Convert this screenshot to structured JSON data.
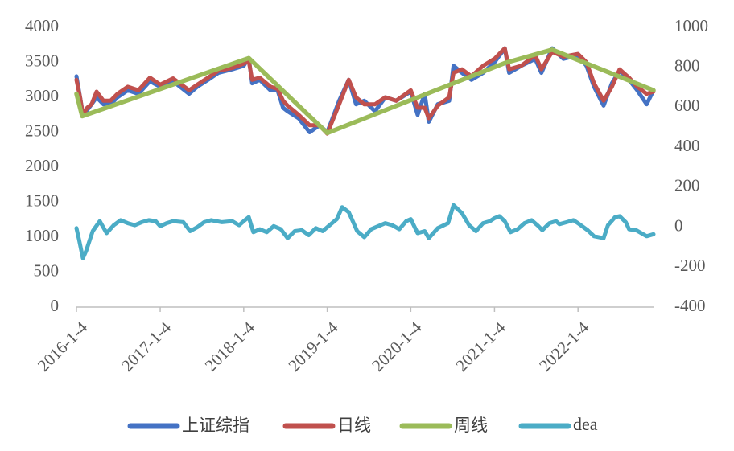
{
  "chart_data": {
    "type": "line",
    "x_ticks": [
      "2016-1-4",
      "2017-1-4",
      "2018-1-4",
      "2019-1-4",
      "2020-1-4",
      "2021-1-4",
      "2022-1-4"
    ],
    "x_range": [
      "2016-1-4",
      "2022-11-30"
    ],
    "y_left": {
      "ticks": [
        0,
        500,
        1000,
        1500,
        2000,
        2500,
        3000,
        3500,
        4000
      ],
      "range": [
        0,
        4000
      ]
    },
    "y_right": {
      "ticks": [
        -400,
        -200,
        0,
        200,
        400,
        600,
        800,
        1000
      ],
      "range": [
        -400,
        1000
      ]
    },
    "grid": false,
    "legend_position": "bottom",
    "series": [
      {
        "name": "上证综指",
        "axis": "left",
        "color": "#4472C4",
        "points": [
          [
            "2016-01-04",
            3300
          ],
          [
            "2016-01-20",
            3000
          ],
          [
            "2016-02-01",
            2750
          ],
          [
            "2016-02-20",
            2820
          ],
          [
            "2016-03-10",
            2900
          ],
          [
            "2016-04-01",
            3000
          ],
          [
            "2016-05-01",
            2900
          ],
          [
            "2016-06-01",
            2900
          ],
          [
            "2016-07-01",
            3000
          ],
          [
            "2016-08-15",
            3100
          ],
          [
            "2016-10-01",
            3050
          ],
          [
            "2016-11-20",
            3230
          ],
          [
            "2017-01-04",
            3150
          ],
          [
            "2017-03-01",
            3230
          ],
          [
            "2017-05-10",
            3050
          ],
          [
            "2017-06-15",
            3150
          ],
          [
            "2017-08-01",
            3250
          ],
          [
            "2017-09-15",
            3350
          ],
          [
            "2017-11-15",
            3400
          ],
          [
            "2018-01-04",
            3450
          ],
          [
            "2018-01-26",
            3560
          ],
          [
            "2018-02-10",
            3200
          ],
          [
            "2018-03-15",
            3250
          ],
          [
            "2018-05-01",
            3100
          ],
          [
            "2018-06-01",
            3100
          ],
          [
            "2018-06-25",
            2850
          ],
          [
            "2018-07-15",
            2800
          ],
          [
            "2018-09-01",
            2700
          ],
          [
            "2018-10-19",
            2500
          ],
          [
            "2018-12-01",
            2600
          ],
          [
            "2019-01-04",
            2500
          ],
          [
            "2019-02-25",
            2950
          ],
          [
            "2019-04-08",
            3250
          ],
          [
            "2019-05-10",
            2900
          ],
          [
            "2019-06-15",
            2950
          ],
          [
            "2019-08-01",
            2800
          ],
          [
            "2019-09-15",
            3000
          ],
          [
            "2019-11-01",
            2950
          ],
          [
            "2020-01-04",
            3080
          ],
          [
            "2020-02-03",
            2750
          ],
          [
            "2020-03-05",
            3050
          ],
          [
            "2020-03-23",
            2650
          ],
          [
            "2020-05-01",
            2900
          ],
          [
            "2020-06-20",
            2950
          ],
          [
            "2020-07-09",
            3450
          ],
          [
            "2020-08-15",
            3350
          ],
          [
            "2020-09-25",
            3250
          ],
          [
            "2020-11-15",
            3350
          ],
          [
            "2021-01-04",
            3500
          ],
          [
            "2021-02-18",
            3700
          ],
          [
            "2021-03-09",
            3350
          ],
          [
            "2021-05-01",
            3450
          ],
          [
            "2021-07-01",
            3550
          ],
          [
            "2021-07-28",
            3350
          ],
          [
            "2021-09-13",
            3700
          ],
          [
            "2021-11-01",
            3550
          ],
          [
            "2022-01-04",
            3600
          ],
          [
            "2022-02-10",
            3450
          ],
          [
            "2022-03-15",
            3150
          ],
          [
            "2022-04-26",
            2880
          ],
          [
            "2022-06-01",
            3200
          ],
          [
            "2022-07-05",
            3380
          ],
          [
            "2022-08-15",
            3250
          ],
          [
            "2022-09-20",
            3100
          ],
          [
            "2022-10-31",
            2900
          ],
          [
            "2022-11-30",
            3100
          ]
        ]
      },
      {
        "name": "日线",
        "axis": "left",
        "color": "#C0504D",
        "points": [
          [
            "2016-01-04",
            3250
          ],
          [
            "2016-01-20",
            3000
          ],
          [
            "2016-02-01",
            2750
          ],
          [
            "2016-02-20",
            2850
          ],
          [
            "2016-03-10",
            2900
          ],
          [
            "2016-04-01",
            3080
          ],
          [
            "2016-05-01",
            2950
          ],
          [
            "2016-06-01",
            2950
          ],
          [
            "2016-07-01",
            3050
          ],
          [
            "2016-08-15",
            3150
          ],
          [
            "2016-10-01",
            3100
          ],
          [
            "2016-11-20",
            3280
          ],
          [
            "2017-01-04",
            3180
          ],
          [
            "2017-03-01",
            3270
          ],
          [
            "2017-05-10",
            3100
          ],
          [
            "2017-06-15",
            3180
          ],
          [
            "2017-08-01",
            3280
          ],
          [
            "2017-09-15",
            3380
          ],
          [
            "2017-11-15",
            3420
          ],
          [
            "2018-01-04",
            3480
          ],
          [
            "2018-01-26",
            3520
          ],
          [
            "2018-02-10",
            3250
          ],
          [
            "2018-03-15",
            3280
          ],
          [
            "2018-05-01",
            3150
          ],
          [
            "2018-06-01",
            3120
          ],
          [
            "2018-06-25",
            2950
          ],
          [
            "2018-07-15",
            2880
          ],
          [
            "2018-09-01",
            2750
          ],
          [
            "2018-10-19",
            2600
          ],
          [
            "2018-12-01",
            2600
          ],
          [
            "2019-01-04",
            2480
          ],
          [
            "2019-02-25",
            2900
          ],
          [
            "2019-04-08",
            3250
          ],
          [
            "2019-05-10",
            3000
          ],
          [
            "2019-06-15",
            2900
          ],
          [
            "2019-08-01",
            2900
          ],
          [
            "2019-09-15",
            3000
          ],
          [
            "2019-11-01",
            2950
          ],
          [
            "2020-01-04",
            3100
          ],
          [
            "2020-02-03",
            2850
          ],
          [
            "2020-03-05",
            2850
          ],
          [
            "2020-03-23",
            2700
          ],
          [
            "2020-05-01",
            2880
          ],
          [
            "2020-06-20",
            3000
          ],
          [
            "2020-07-09",
            3350
          ],
          [
            "2020-08-15",
            3400
          ],
          [
            "2020-09-25",
            3300
          ],
          [
            "2020-11-15",
            3450
          ],
          [
            "2021-01-04",
            3550
          ],
          [
            "2021-02-18",
            3700
          ],
          [
            "2021-03-09",
            3400
          ],
          [
            "2021-05-01",
            3450
          ],
          [
            "2021-07-01",
            3600
          ],
          [
            "2021-07-28",
            3400
          ],
          [
            "2021-09-13",
            3650
          ],
          [
            "2021-11-01",
            3580
          ],
          [
            "2022-01-04",
            3620
          ],
          [
            "2022-02-10",
            3500
          ],
          [
            "2022-03-15",
            3200
          ],
          [
            "2022-04-26",
            2950
          ],
          [
            "2022-06-01",
            3150
          ],
          [
            "2022-07-05",
            3400
          ],
          [
            "2022-08-15",
            3280
          ],
          [
            "2022-09-20",
            3150
          ],
          [
            "2022-10-31",
            3050
          ],
          [
            "2022-11-30",
            3080
          ]
        ]
      },
      {
        "name": "周线",
        "axis": "left",
        "color": "#9BBB59",
        "points": [
          [
            "2016-01-04",
            3050
          ],
          [
            "2016-01-29",
            2730
          ],
          [
            "2018-01-26",
            3560
          ],
          [
            "2019-01-04",
            2490
          ],
          [
            "2021-02-18",
            3490
          ],
          [
            "2021-09-13",
            3680
          ],
          [
            "2022-11-30",
            3100
          ]
        ]
      },
      {
        "name": "dea",
        "axis": "right",
        "color": "#4BACC6",
        "points": [
          [
            "2016-01-04",
            -5
          ],
          [
            "2016-01-15",
            -60
          ],
          [
            "2016-02-01",
            -155
          ],
          [
            "2016-02-15",
            -120
          ],
          [
            "2016-03-15",
            -20
          ],
          [
            "2016-04-15",
            30
          ],
          [
            "2016-05-15",
            -30
          ],
          [
            "2016-06-15",
            10
          ],
          [
            "2016-07-15",
            35
          ],
          [
            "2016-08-15",
            20
          ],
          [
            "2016-09-15",
            10
          ],
          [
            "2016-10-15",
            25
          ],
          [
            "2016-11-15",
            35
          ],
          [
            "2016-12-15",
            30
          ],
          [
            "2017-01-04",
            5
          ],
          [
            "2017-02-01",
            20
          ],
          [
            "2017-03-01",
            30
          ],
          [
            "2017-04-15",
            25
          ],
          [
            "2017-05-15",
            -20
          ],
          [
            "2017-06-15",
            0
          ],
          [
            "2017-07-15",
            25
          ],
          [
            "2017-08-15",
            35
          ],
          [
            "2017-10-01",
            25
          ],
          [
            "2017-11-15",
            30
          ],
          [
            "2017-12-15",
            10
          ],
          [
            "2018-01-04",
            30
          ],
          [
            "2018-01-26",
            50
          ],
          [
            "2018-02-15",
            -25
          ],
          [
            "2018-03-15",
            -10
          ],
          [
            "2018-04-15",
            -25
          ],
          [
            "2018-05-15",
            5
          ],
          [
            "2018-06-15",
            -10
          ],
          [
            "2018-07-15",
            -55
          ],
          [
            "2018-08-15",
            -20
          ],
          [
            "2018-09-15",
            -15
          ],
          [
            "2018-10-15",
            -40
          ],
          [
            "2018-11-15",
            -5
          ],
          [
            "2018-12-15",
            -20
          ],
          [
            "2019-01-04",
            0
          ],
          [
            "2019-02-15",
            40
          ],
          [
            "2019-03-10",
            100
          ],
          [
            "2019-04-08",
            75
          ],
          [
            "2019-05-15",
            -20
          ],
          [
            "2019-06-15",
            -50
          ],
          [
            "2019-07-15",
            -10
          ],
          [
            "2019-08-15",
            5
          ],
          [
            "2019-09-15",
            20
          ],
          [
            "2019-10-15",
            10
          ],
          [
            "2019-11-15",
            -10
          ],
          [
            "2019-12-15",
            30
          ],
          [
            "2020-01-04",
            40
          ],
          [
            "2020-02-03",
            -30
          ],
          [
            "2020-03-05",
            -20
          ],
          [
            "2020-03-23",
            -55
          ],
          [
            "2020-05-01",
            -5
          ],
          [
            "2020-06-15",
            20
          ],
          [
            "2020-07-09",
            110
          ],
          [
            "2020-08-15",
            70
          ],
          [
            "2020-09-15",
            10
          ],
          [
            "2020-10-15",
            -20
          ],
          [
            "2020-11-15",
            20
          ],
          [
            "2020-12-15",
            30
          ],
          [
            "2021-01-04",
            45
          ],
          [
            "2021-01-25",
            55
          ],
          [
            "2021-02-18",
            30
          ],
          [
            "2021-03-15",
            -25
          ],
          [
            "2021-04-15",
            -10
          ],
          [
            "2021-05-15",
            20
          ],
          [
            "2021-06-15",
            35
          ],
          [
            "2021-07-15",
            5
          ],
          [
            "2021-08-01",
            -15
          ],
          [
            "2021-09-01",
            20
          ],
          [
            "2021-09-30",
            30
          ],
          [
            "2021-10-15",
            15
          ],
          [
            "2021-11-15",
            25
          ],
          [
            "2021-12-15",
            35
          ],
          [
            "2022-01-04",
            20
          ],
          [
            "2022-02-15",
            -15
          ],
          [
            "2022-03-15",
            -45
          ],
          [
            "2022-04-26",
            -55
          ],
          [
            "2022-05-15",
            10
          ],
          [
            "2022-06-15",
            50
          ],
          [
            "2022-07-05",
            55
          ],
          [
            "2022-08-01",
            25
          ],
          [
            "2022-08-15",
            -10
          ],
          [
            "2022-09-15",
            -15
          ],
          [
            "2022-10-31",
            -45
          ],
          [
            "2022-11-30",
            -35
          ]
        ]
      }
    ]
  }
}
